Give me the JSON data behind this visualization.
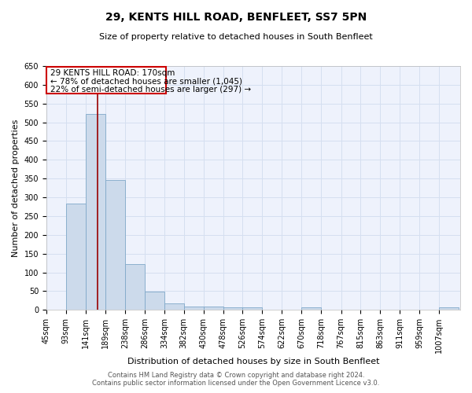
{
  "title": "29, KENTS HILL ROAD, BENFLEET, SS7 5PN",
  "subtitle": "Size of property relative to detached houses in South Benfleet",
  "xlabel": "Distribution of detached houses by size in South Benfleet",
  "ylabel": "Number of detached properties",
  "footer_line1": "Contains HM Land Registry data © Crown copyright and database right 2024.",
  "footer_line2": "Contains public sector information licensed under the Open Government Licence v3.0.",
  "annotation_line1": "29 KENTS HILL ROAD: 170sqm",
  "annotation_line2": "← 78% of detached houses are smaller (1,045)",
  "annotation_line3": "22% of semi-detached houses are larger (297) →",
  "property_size": 170,
  "bar_color": "#ccdaeb",
  "bar_edge_color": "#7fa8c9",
  "vline_color": "#990000",
  "annotation_box_edgecolor": "#cc0000",
  "grid_color": "#d5dff0",
  "bg_color": "#eef2fc",
  "bins": [
    45,
    93,
    141,
    189,
    238,
    286,
    334,
    382,
    430,
    478,
    526,
    574,
    622,
    670,
    718,
    767,
    815,
    863,
    911,
    959,
    1007
  ],
  "bin_width": 48,
  "values": [
    0,
    283,
    522,
    347,
    122,
    48,
    17,
    10,
    10,
    7,
    7,
    0,
    0,
    7,
    0,
    0,
    0,
    0,
    0,
    0,
    7
  ],
  "ylim": [
    0,
    650
  ],
  "yticks": [
    0,
    50,
    100,
    150,
    200,
    250,
    300,
    350,
    400,
    450,
    500,
    550,
    600,
    650
  ],
  "title_fontsize": 10,
  "subtitle_fontsize": 8,
  "ylabel_fontsize": 8,
  "xlabel_fontsize": 8,
  "tick_fontsize": 7,
  "annotation_fontsize": 7.5,
  "footer_fontsize": 6
}
